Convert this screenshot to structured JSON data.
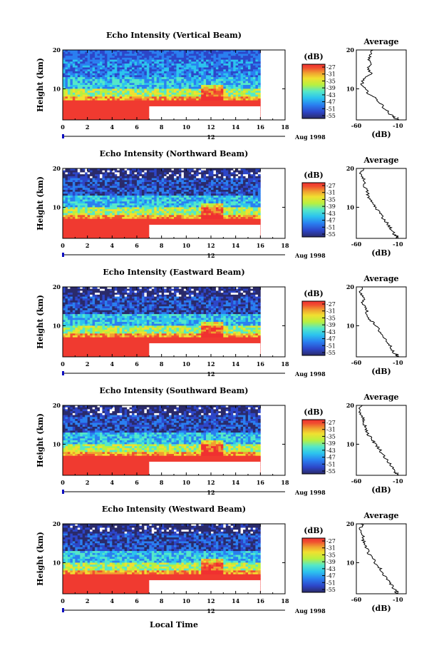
{
  "colors": {
    "scale": [
      "#2a2a6a",
      "#2d46c8",
      "#2a7ff0",
      "#2cc4ee",
      "#55e8c8",
      "#b8f040",
      "#f0e030",
      "#f0a030",
      "#f05030",
      "#f03030"
    ],
    "saturated": "#f03a30",
    "background": "#ffffff",
    "marker": "#1010c0"
  },
  "shared": {
    "height_label": "Height (km)",
    "date_label": "Aug 1998",
    "unit_label": "(dB)",
    "average_title": "Average",
    "marker_label": "12",
    "xlabel": "Local Time"
  },
  "chart_data": [
    {
      "type": "heatmap",
      "title": "Echo Intensity (Vertical Beam)",
      "ylabel": "Height (km)",
      "xlim": [
        0,
        18
      ],
      "ylim": [
        2,
        20
      ],
      "xticks": [
        "0",
        "2",
        "4",
        "6",
        "8",
        "10",
        "12",
        "14",
        "16",
        "18"
      ],
      "yticks": [
        "10",
        "20"
      ],
      "data_extent_hours": [
        0,
        16
      ],
      "colorbar": {
        "label": "(dB)",
        "ticks": [
          "-27",
          "-31",
          "-35",
          "-39",
          "-43",
          "-47",
          "-51",
          "-55"
        ]
      },
      "average_profile": {
        "title": "Average",
        "xlabel": "(dB)",
        "xticks": [
          "-60",
          "-10"
        ],
        "xlim": [
          -60,
          0
        ],
        "x": [
          -40,
          -42,
          -45,
          -43,
          -44,
          -46,
          -42,
          -50,
          -52,
          -54,
          -50,
          -46,
          -40,
          -34,
          -30,
          -26,
          -22,
          -17,
          -13,
          -11
        ],
        "y": [
          20,
          19,
          18,
          17,
          16,
          15,
          14,
          13,
          12,
          11,
          10,
          9,
          8,
          7,
          6,
          5,
          4,
          3,
          2.5,
          2
        ]
      }
    },
    {
      "type": "heatmap",
      "title": "Echo Intensity (Northward Beam)",
      "ylabel": "Height (km)",
      "xlim": [
        0,
        18
      ],
      "ylim": [
        2,
        20
      ],
      "xticks": [
        "0",
        "2",
        "4",
        "6",
        "8",
        "10",
        "12",
        "14",
        "16",
        "18"
      ],
      "yticks": [
        "10",
        "20"
      ],
      "data_extent_hours": [
        0,
        16
      ],
      "colorbar": {
        "label": "(dB)",
        "ticks": [
          "-27",
          "-31",
          "-35",
          "-39",
          "-43",
          "-47",
          "-51",
          "-55"
        ]
      },
      "average_profile": {
        "title": "Average",
        "xlabel": "(dB)",
        "xticks": [
          "-60",
          "-10"
        ],
        "xlim": [
          -60,
          0
        ],
        "x": [
          -52,
          -55,
          -53,
          -50,
          -51,
          -49,
          -47,
          -46,
          -44,
          -40,
          -37,
          -33,
          -30,
          -27,
          -23,
          -20,
          -17,
          -14,
          -12,
          -11
        ],
        "y": [
          20,
          19,
          18,
          17,
          16,
          15,
          14,
          13,
          12,
          11,
          10,
          9,
          8,
          7,
          6,
          5,
          4,
          3,
          2.5,
          2
        ]
      }
    },
    {
      "type": "heatmap",
      "title": "Echo Intensity (Eastward Beam)",
      "ylabel": "Height (km)",
      "xlim": [
        0,
        18
      ],
      "ylim": [
        2,
        20
      ],
      "xticks": [
        "0",
        "2",
        "4",
        "6",
        "8",
        "10",
        "12",
        "14",
        "16",
        "18"
      ],
      "yticks": [
        "10",
        "20"
      ],
      "data_extent_hours": [
        0,
        16
      ],
      "colorbar": {
        "label": "(dB)",
        "ticks": [
          "-27",
          "-31",
          "-35",
          "-39",
          "-43",
          "-47",
          "-51",
          "-55"
        ]
      },
      "average_profile": {
        "title": "Average",
        "xlabel": "(dB)",
        "xticks": [
          "-60",
          "-10"
        ],
        "xlim": [
          -60,
          0
        ],
        "x": [
          -53,
          -56,
          -54,
          -51,
          -52,
          -50,
          -48,
          -47,
          -45,
          -41,
          -37,
          -33,
          -30,
          -27,
          -23,
          -20,
          -17,
          -14,
          -12,
          -11
        ],
        "y": [
          20,
          19,
          18,
          17,
          16,
          15,
          14,
          13,
          12,
          11,
          10,
          9,
          8,
          7,
          6,
          5,
          4,
          3,
          2.5,
          2
        ]
      }
    },
    {
      "type": "heatmap",
      "title": "Echo Intensity (Southward Beam)",
      "ylabel": "Height (km)",
      "xlim": [
        0,
        18
      ],
      "ylim": [
        2,
        20
      ],
      "xticks": [
        "0",
        "2",
        "4",
        "6",
        "8",
        "10",
        "12",
        "14",
        "16",
        "18"
      ],
      "yticks": [
        "10",
        "20"
      ],
      "data_extent_hours": [
        0,
        16
      ],
      "colorbar": {
        "label": "(dB)",
        "ticks": [
          "-27",
          "-31",
          "-35",
          "-39",
          "-43",
          "-47",
          "-51",
          "-55"
        ]
      },
      "average_profile": {
        "title": "Average",
        "xlabel": "(dB)",
        "xticks": [
          "-60",
          "-10"
        ],
        "xlim": [
          -60,
          0
        ],
        "x": [
          -54,
          -56,
          -55,
          -52,
          -52,
          -50,
          -48,
          -47,
          -44,
          -40,
          -37,
          -33,
          -30,
          -27,
          -23,
          -20,
          -17,
          -14,
          -12,
          -11
        ],
        "y": [
          20,
          19,
          18,
          17,
          16,
          15,
          14,
          13,
          12,
          11,
          10,
          9,
          8,
          7,
          6,
          5,
          4,
          3,
          2.5,
          2
        ]
      }
    },
    {
      "type": "heatmap",
      "title": "Echo Intensity (Westward Beam)",
      "ylabel": "Height (km)",
      "xlim": [
        0,
        18
      ],
      "ylim": [
        2,
        20
      ],
      "xticks": [
        "0",
        "2",
        "4",
        "6",
        "8",
        "10",
        "12",
        "14",
        "16",
        "18"
      ],
      "yticks": [
        "10",
        "20"
      ],
      "data_extent_hours": [
        0,
        16
      ],
      "colorbar": {
        "label": "(dB)",
        "ticks": [
          "-27",
          "-31",
          "-35",
          "-39",
          "-43",
          "-47",
          "-51",
          "-55"
        ]
      },
      "average_profile": {
        "title": "Average",
        "xlabel": "(dB)",
        "xticks": [
          "-60",
          "-10"
        ],
        "xlim": [
          -60,
          0
        ],
        "x": [
          -53,
          -55,
          -54,
          -51,
          -52,
          -50,
          -48,
          -46,
          -44,
          -40,
          -37,
          -33,
          -30,
          -27,
          -23,
          -20,
          -17,
          -14,
          -12,
          -11
        ],
        "y": [
          20,
          19,
          18,
          17,
          16,
          15,
          14,
          13,
          12,
          11,
          10,
          9,
          8,
          7,
          6,
          5,
          4,
          3,
          2.5,
          2
        ]
      }
    }
  ]
}
